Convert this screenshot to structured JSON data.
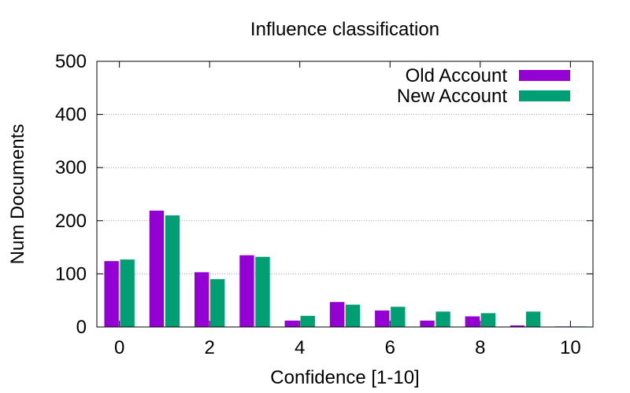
{
  "chart_data": {
    "type": "bar",
    "title": "Influence classification",
    "xlabel": "Confidence [1-10]",
    "ylabel": "Num Documents",
    "ylim": [
      0,
      500
    ],
    "xlim": [
      -0.5,
      10.5
    ],
    "yticks": [
      0,
      100,
      200,
      300,
      400,
      500
    ],
    "xticks": [
      0,
      2,
      4,
      6,
      8,
      10
    ],
    "grid": true,
    "legend_position": "top-right",
    "categories": [
      0,
      1,
      2,
      3,
      4,
      5,
      6,
      7,
      8,
      9,
      10
    ],
    "series": [
      {
        "name": "Old Account",
        "color": "#9400d3",
        "values": [
          124,
          219,
          103,
          135,
          12,
          47,
          31,
          12,
          20,
          3,
          1
        ]
      },
      {
        "name": "New Account",
        "color": "#009e73",
        "values": [
          127,
          210,
          90,
          132,
          21,
          42,
          38,
          29,
          26,
          29,
          1
        ]
      }
    ]
  }
}
